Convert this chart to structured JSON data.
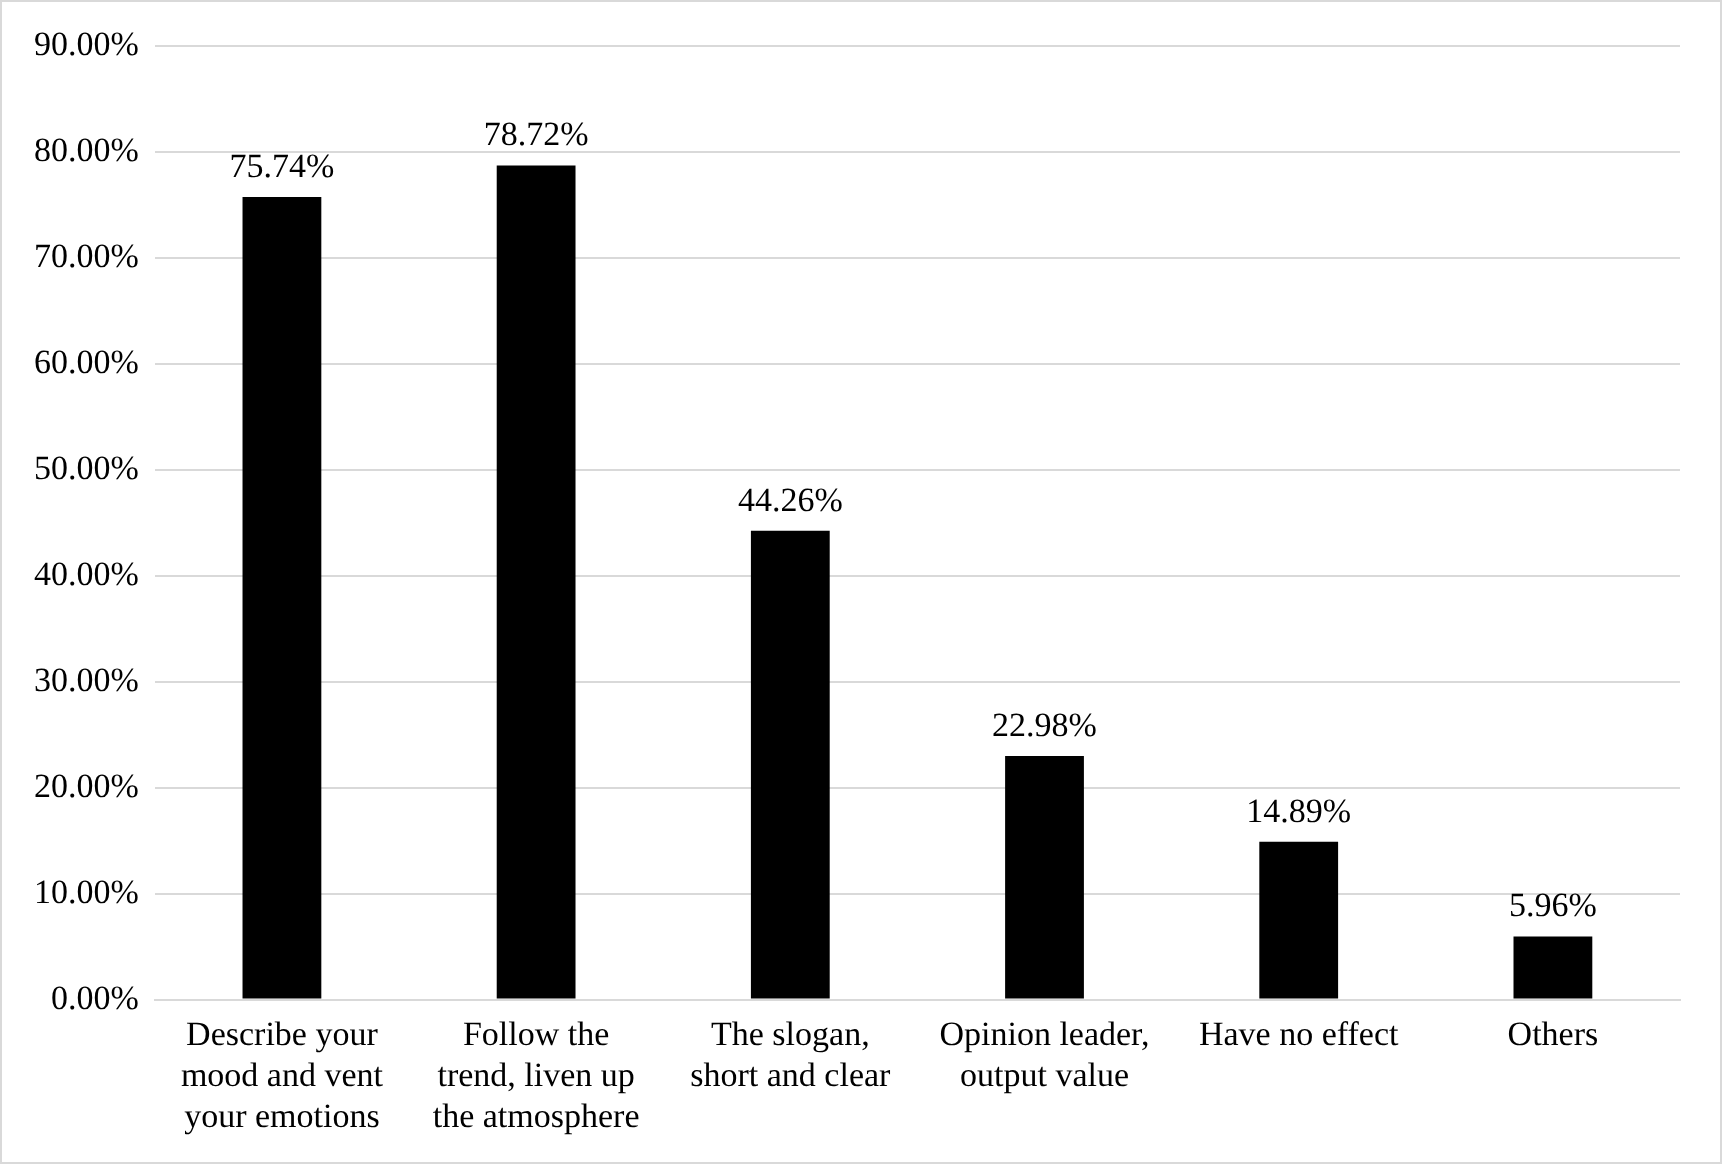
{
  "chart_data": {
    "type": "bar",
    "categories": [
      "Describe your mood and vent your emotions",
      "Follow the trend, liven up the atmosphere",
      "The slogan, short and clear",
      "Opinion leader, output value",
      "Have no effect",
      "Others"
    ],
    "values": [
      75.74,
      78.72,
      44.26,
      22.98,
      14.89,
      5.96
    ],
    "value_labels": [
      "75.74%",
      "78.72%",
      "44.26%",
      "22.98%",
      "14.89%",
      "5.96%"
    ],
    "color": "#000000",
    "ylim": [
      0,
      90
    ],
    "yticks": [
      {
        "value": 0,
        "label": "0.00%"
      },
      {
        "value": 10,
        "label": "10.00%"
      },
      {
        "value": 20,
        "label": "20.00%"
      },
      {
        "value": 30,
        "label": "30.00%"
      },
      {
        "value": 40,
        "label": "40.00%"
      },
      {
        "value": 50,
        "label": "50.00%"
      },
      {
        "value": 60,
        "label": "60.00%"
      },
      {
        "value": 70,
        "label": "70.00%"
      },
      {
        "value": 80,
        "label": "80.00%"
      },
      {
        "value": 90,
        "label": "90.00%"
      }
    ],
    "grid": "y",
    "legend": false
  }
}
